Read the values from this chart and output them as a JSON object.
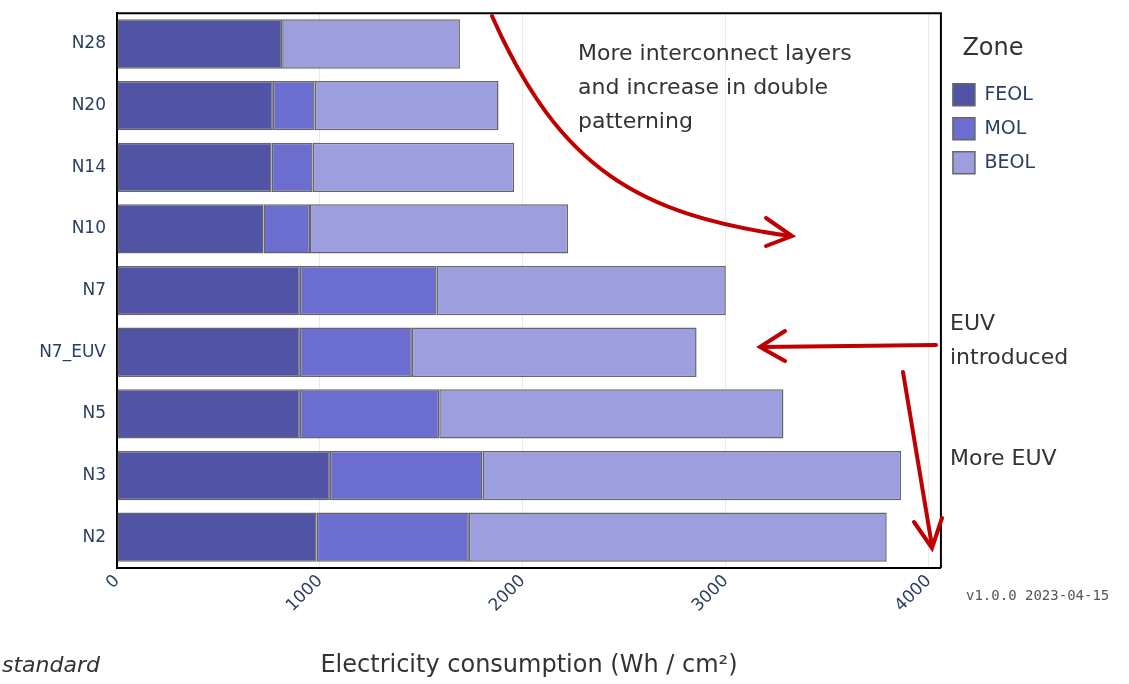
{
  "chart_data": {
    "type": "bar",
    "orientation": "horizontal",
    "stacked": true,
    "categories": [
      "N28",
      "N20",
      "N14",
      "N10",
      "N7",
      "N7_EUV",
      "N5",
      "N3",
      "N2"
    ],
    "series": [
      {
        "name": "FEOL",
        "color": "#5154a4",
        "values": [
          814,
          768,
          762,
          722,
          901,
          901,
          901,
          1049,
          984
        ]
      },
      {
        "name": "MOL",
        "color": "#6b6ecf",
        "values": [
          0,
          206,
          202,
          229,
          674,
          552,
          687,
          752,
          750
        ]
      },
      {
        "name": "BEOL",
        "color": "#9c9ede",
        "values": [
          876,
          906,
          993,
          1272,
          1425,
          1403,
          1696,
          2063,
          2059
        ]
      }
    ],
    "xlabel": "Electricity consumption (Wh / cm²)",
    "xlim": [
      0,
      4060
    ],
    "xticks": [
      0,
      1000,
      2000,
      3000,
      4000
    ],
    "grid": "x",
    "legend": "top right",
    "legend_title": "Zone",
    "annotations": [
      "More interconnect layers and increase in double patterning",
      "EUV introduced",
      "More EUV",
      "standard",
      "v1.0.0 2023-04-15"
    ]
  }
}
